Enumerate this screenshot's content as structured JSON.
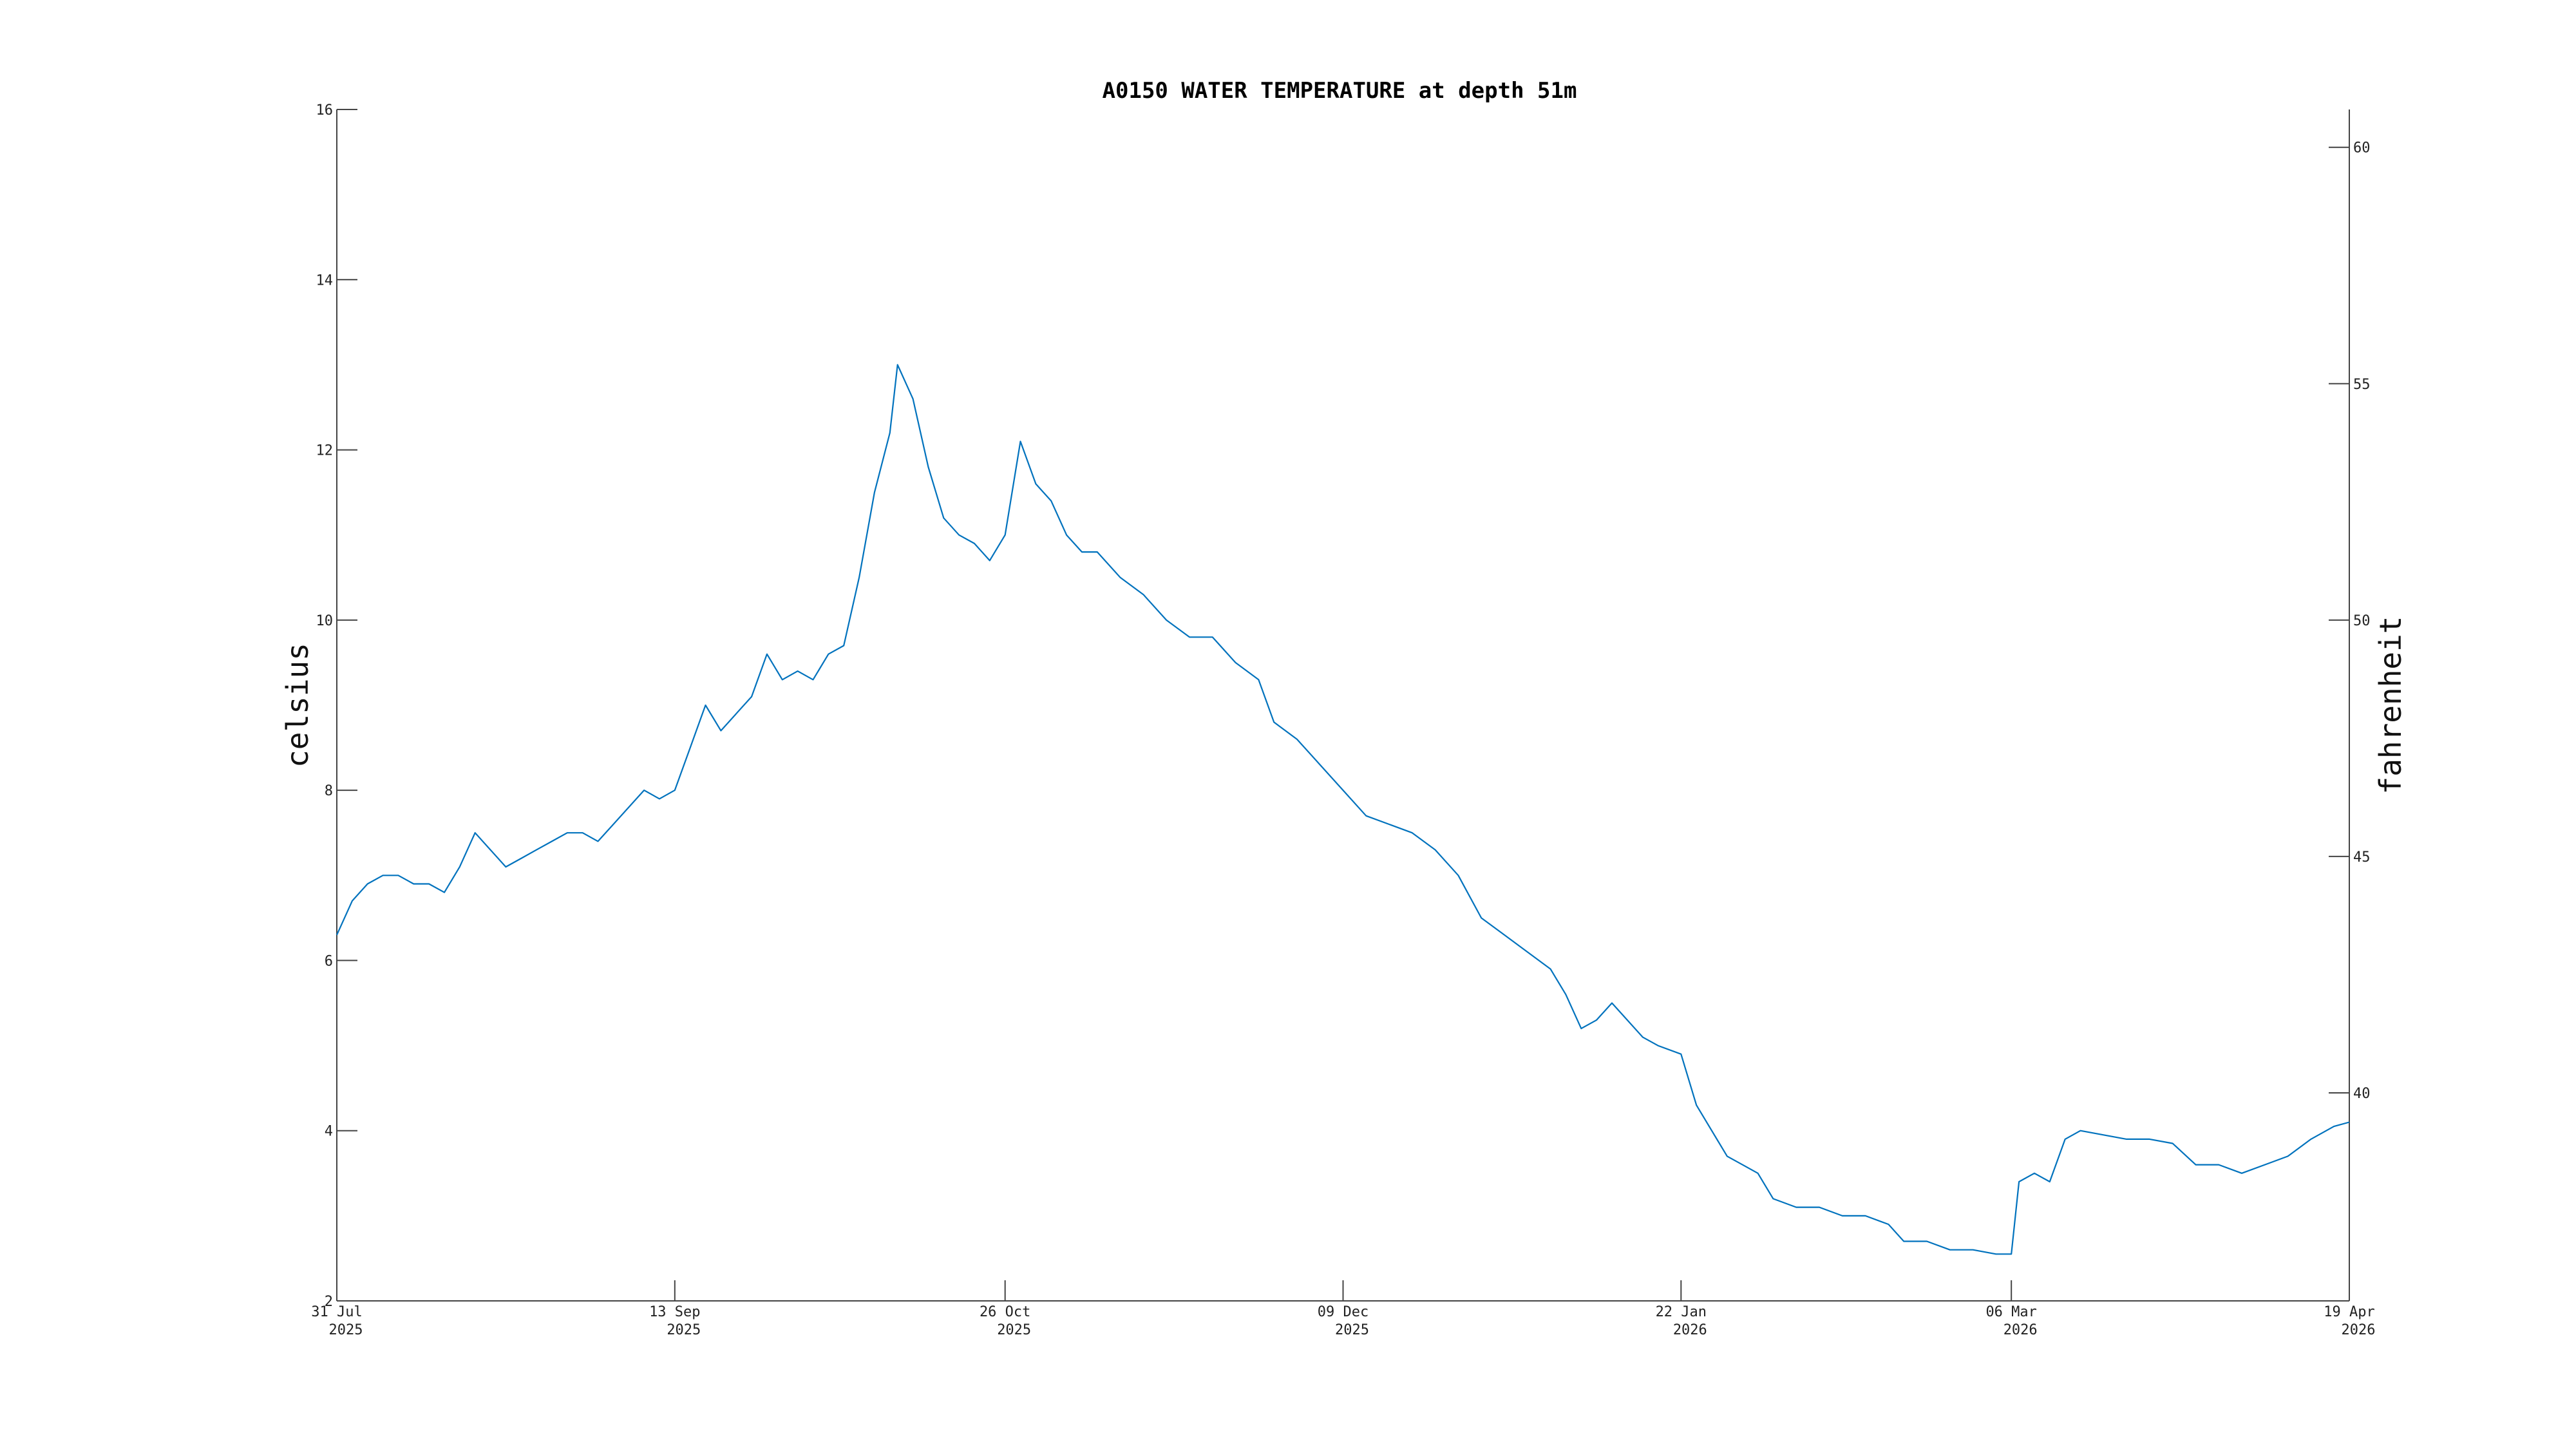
{
  "chart_data": {
    "type": "line",
    "title": "A0150 WATER TEMPERATURE at depth 51m",
    "ylabel": "celsius",
    "y2label": "fahrenheit",
    "ylim": [
      2,
      16
    ],
    "y2lim": [
      35.6,
      60.8
    ],
    "yticks": [
      2,
      4,
      6,
      8,
      10,
      12,
      14,
      16
    ],
    "y2ticks": [
      40,
      45,
      50,
      55,
      60
    ],
    "xlim": [
      "2025-07-31",
      "2026-04-19"
    ],
    "xticks": [
      {
        "date": "2025-07-31",
        "label": "31 Jul",
        "year": "2025"
      },
      {
        "date": "2025-09-13",
        "label": "13 Sep",
        "year": "2025"
      },
      {
        "date": "2025-10-26",
        "label": "26 Oct",
        "year": "2025"
      },
      {
        "date": "2025-12-09",
        "label": "09 Dec",
        "year": "2025"
      },
      {
        "date": "2026-01-22",
        "label": "22 Jan",
        "year": "2026"
      },
      {
        "date": "2026-03-06",
        "label": "06 Mar",
        "year": "2026"
      },
      {
        "date": "2026-04-19",
        "label": "19 Apr",
        "year": "2026"
      }
    ],
    "grid": false,
    "series": [
      {
        "color": "#0072BD",
        "points": [
          [
            "2025-07-31",
            6.3
          ],
          [
            "2025-08-02",
            6.7
          ],
          [
            "2025-08-04",
            6.9
          ],
          [
            "2025-08-06",
            7.0
          ],
          [
            "2025-08-08",
            7.0
          ],
          [
            "2025-08-10",
            6.9
          ],
          [
            "2025-08-12",
            6.9
          ],
          [
            "2025-08-14",
            6.8
          ],
          [
            "2025-08-16",
            7.1
          ],
          [
            "2025-08-18",
            7.5
          ],
          [
            "2025-08-20",
            7.3
          ],
          [
            "2025-08-22",
            7.1
          ],
          [
            "2025-08-24",
            7.2
          ],
          [
            "2025-08-26",
            7.3
          ],
          [
            "2025-08-28",
            7.4
          ],
          [
            "2025-08-30",
            7.5
          ],
          [
            "2025-09-01",
            7.5
          ],
          [
            "2025-09-03",
            7.4
          ],
          [
            "2025-09-05",
            7.6
          ],
          [
            "2025-09-07",
            7.8
          ],
          [
            "2025-09-09",
            8.0
          ],
          [
            "2025-09-11",
            7.9
          ],
          [
            "2025-09-13",
            8.0
          ],
          [
            "2025-09-15",
            8.5
          ],
          [
            "2025-09-17",
            9.0
          ],
          [
            "2025-09-19",
            8.7
          ],
          [
            "2025-09-21",
            8.9
          ],
          [
            "2025-09-23",
            9.1
          ],
          [
            "2025-09-25",
            9.6
          ],
          [
            "2025-09-27",
            9.3
          ],
          [
            "2025-09-29",
            9.4
          ],
          [
            "2025-10-01",
            9.3
          ],
          [
            "2025-10-03",
            9.6
          ],
          [
            "2025-10-05",
            9.7
          ],
          [
            "2025-10-07",
            10.5
          ],
          [
            "2025-10-09",
            11.5
          ],
          [
            "2025-10-11",
            12.2
          ],
          [
            "2025-10-12",
            13.0
          ],
          [
            "2025-10-14",
            12.6
          ],
          [
            "2025-10-16",
            11.8
          ],
          [
            "2025-10-18",
            11.2
          ],
          [
            "2025-10-20",
            11.0
          ],
          [
            "2025-10-22",
            10.9
          ],
          [
            "2025-10-24",
            10.7
          ],
          [
            "2025-10-26",
            11.0
          ],
          [
            "2025-10-28",
            12.1
          ],
          [
            "2025-10-30",
            11.6
          ],
          [
            "2025-11-01",
            11.4
          ],
          [
            "2025-11-03",
            11.0
          ],
          [
            "2025-11-05",
            10.8
          ],
          [
            "2025-11-07",
            10.8
          ],
          [
            "2025-11-10",
            10.5
          ],
          [
            "2025-11-13",
            10.3
          ],
          [
            "2025-11-16",
            10.0
          ],
          [
            "2025-11-19",
            9.8
          ],
          [
            "2025-11-22",
            9.8
          ],
          [
            "2025-11-25",
            9.5
          ],
          [
            "2025-11-28",
            9.3
          ],
          [
            "2025-11-30",
            8.8
          ],
          [
            "2025-12-03",
            8.6
          ],
          [
            "2025-12-06",
            8.3
          ],
          [
            "2025-12-09",
            8.0
          ],
          [
            "2025-12-12",
            7.7
          ],
          [
            "2025-12-15",
            7.6
          ],
          [
            "2025-12-18",
            7.5
          ],
          [
            "2025-12-21",
            7.3
          ],
          [
            "2025-12-24",
            7.0
          ],
          [
            "2025-12-27",
            6.5
          ],
          [
            "2025-12-30",
            6.3
          ],
          [
            "2026-01-02",
            6.1
          ],
          [
            "2026-01-05",
            5.9
          ],
          [
            "2026-01-07",
            5.6
          ],
          [
            "2026-01-09",
            5.2
          ],
          [
            "2026-01-11",
            5.3
          ],
          [
            "2026-01-13",
            5.5
          ],
          [
            "2026-01-15",
            5.3
          ],
          [
            "2026-01-17",
            5.1
          ],
          [
            "2026-01-19",
            5.0
          ],
          [
            "2026-01-22",
            4.9
          ],
          [
            "2026-01-24",
            4.3
          ],
          [
            "2026-01-26",
            4.0
          ],
          [
            "2026-01-28",
            3.7
          ],
          [
            "2026-01-30",
            3.6
          ],
          [
            "2026-02-01",
            3.5
          ],
          [
            "2026-02-03",
            3.2
          ],
          [
            "2026-02-06",
            3.1
          ],
          [
            "2026-02-09",
            3.1
          ],
          [
            "2026-02-12",
            3.0
          ],
          [
            "2026-02-15",
            3.0
          ],
          [
            "2026-02-18",
            2.9
          ],
          [
            "2026-02-20",
            2.7
          ],
          [
            "2026-02-23",
            2.7
          ],
          [
            "2026-02-26",
            2.6
          ],
          [
            "2026-03-01",
            2.6
          ],
          [
            "2026-03-04",
            2.55
          ],
          [
            "2026-03-06",
            2.55
          ],
          [
            "2026-03-07",
            3.4
          ],
          [
            "2026-03-09",
            3.5
          ],
          [
            "2026-03-11",
            3.4
          ],
          [
            "2026-03-13",
            3.9
          ],
          [
            "2026-03-15",
            4.0
          ],
          [
            "2026-03-18",
            3.95
          ],
          [
            "2026-03-21",
            3.9
          ],
          [
            "2026-03-24",
            3.9
          ],
          [
            "2026-03-27",
            3.85
          ],
          [
            "2026-03-30",
            3.6
          ],
          [
            "2026-04-02",
            3.6
          ],
          [
            "2026-04-05",
            3.5
          ],
          [
            "2026-04-08",
            3.6
          ],
          [
            "2026-04-11",
            3.7
          ],
          [
            "2026-04-14",
            3.9
          ],
          [
            "2026-04-17",
            4.05
          ],
          [
            "2026-04-19",
            4.1
          ]
        ]
      }
    ]
  }
}
